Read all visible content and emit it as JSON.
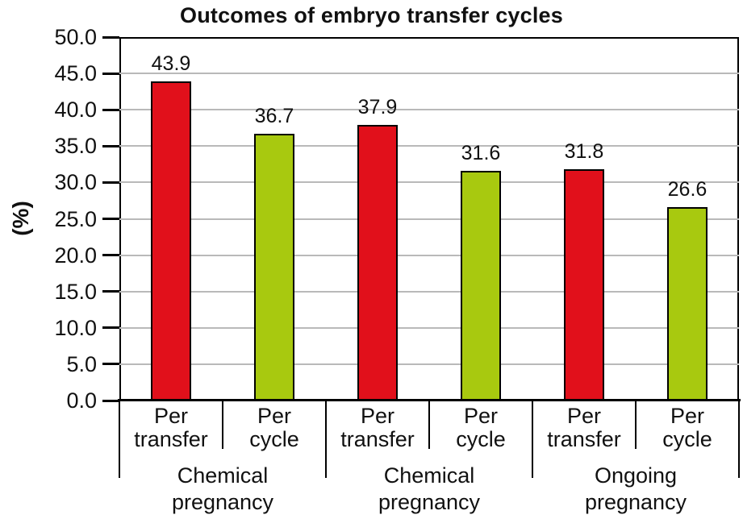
{
  "chart_data": {
    "type": "bar",
    "title": "Outcomes of embryo transfer cycles",
    "ylabel": "(%)",
    "ylim": [
      0,
      50
    ],
    "ytick_step": 5.0,
    "ytick_labels": [
      "0.0",
      "5.0",
      "10.0",
      "15.0",
      "20.0",
      "25.0",
      "30.0",
      "35.0",
      "40.0",
      "45.0",
      "50.0"
    ],
    "grid": "horizontal gridlines every 5 units",
    "legend_position": "none",
    "categories": [
      "Chemical pregnancy",
      "Chemical pregnancy",
      "Ongoing pregnancy"
    ],
    "bar_sublabels": [
      "Per transfer",
      "Per cycle"
    ],
    "series": [
      {
        "name": "Per transfer",
        "color": "#e1101b",
        "values": [
          43.9,
          37.9,
          31.8
        ]
      },
      {
        "name": "Per cycle",
        "color": "#a8c90f",
        "values": [
          36.7,
          31.6,
          26.6
        ]
      }
    ],
    "value_labels": [
      "43.9",
      "36.7",
      "37.9",
      "31.6",
      "31.8",
      "26.6"
    ],
    "colors": {
      "bar_red": "#e1101b",
      "bar_green": "#a8c90f",
      "bar_outline": "#000000",
      "gridline": "#b9b9b9",
      "axis": "#000000",
      "text": "#111111",
      "background": "#ffffff"
    }
  }
}
